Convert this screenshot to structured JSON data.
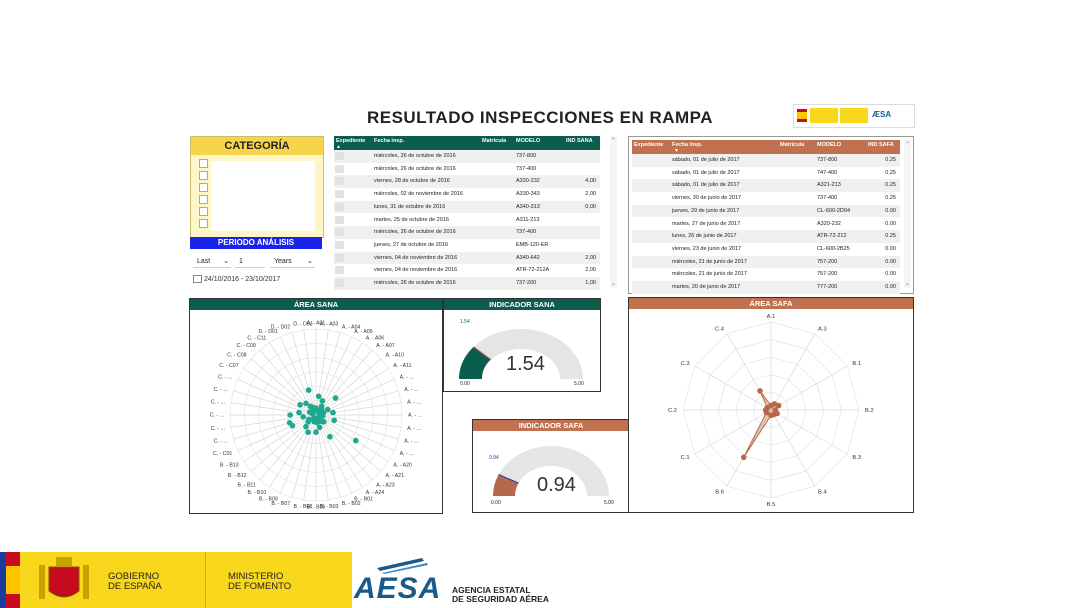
{
  "title": "RESULTADO INSPECCIONES EN RAMPA",
  "logos": {
    "gobierno": "GOBIERNO\nDE ESPAÑA",
    "ministerio": "MINISTERIO\nDE FOMENTO",
    "aesa": "AESA",
    "agencia": "AGENCIA ESTATAL\nDE SEGURIDAD AÉREA"
  },
  "category": {
    "header": "CATEGORÍA",
    "periodo_header": "PERIODO ANÁLISIS",
    "period_mode": "Last",
    "period_count": "1",
    "period_unit": "Years",
    "date_range": "24/10/2016 - 23/10/2017"
  },
  "colors": {
    "sana": "#0b5d4d",
    "safa": "#b5694a",
    "periodo": "#1a24e8",
    "categoria": "#f7d54a"
  },
  "table_sana": {
    "headers": [
      "Expediente",
      "Fecha insp.",
      "Matrícula",
      "MODELO",
      "IND SANA"
    ],
    "rows": [
      [
        "",
        "miércoles, 26 de octubre de 2016",
        "",
        "737-800",
        ""
      ],
      [
        "",
        "miércoles, 26 de octubre de 2016",
        "",
        "737-400",
        ""
      ],
      [
        "",
        "viernes, 28 de octubre de 2016",
        "",
        "A320-232",
        "4,00"
      ],
      [
        "",
        "miércoles, 02 de noviembre de 2016",
        "",
        "A330-343",
        "2,00"
      ],
      [
        "",
        "lunes, 31 de octubre de 2016",
        "",
        "A340-313",
        "0,00"
      ],
      [
        "",
        "martes, 25 de octubre de 2016",
        "",
        "A311-213",
        ""
      ],
      [
        "",
        "miércoles, 26 de octubre de 2016",
        "",
        "737-400",
        ""
      ],
      [
        "",
        "jueves, 27 de octubre de 2016",
        "",
        "EMB-120-ER",
        ""
      ],
      [
        "",
        "viernes, 04 de noviembre de 2016",
        "",
        "A340-642",
        "2,00"
      ],
      [
        "",
        "viernes, 04 de noviembre de 2016",
        "",
        "ATR-72-212A",
        "2,00"
      ],
      [
        "",
        "miércoles, 26 de octubre de 2016",
        "",
        "737-200",
        "1,00"
      ]
    ]
  },
  "table_safa": {
    "headers": [
      "Expediente",
      "Fecha insp.",
      "Matrícula",
      "MODELO",
      "IND SAFA"
    ],
    "rows": [
      [
        "",
        "sábado, 01 de julio de 2017",
        "",
        "737-800",
        "0.25"
      ],
      [
        "",
        "sábado, 01 de julio de 2017",
        "",
        "747-400",
        "0.25"
      ],
      [
        "",
        "sábado, 01 de julio de 2017",
        "",
        "A321-213",
        "0.25"
      ],
      [
        "",
        "viernes, 30 de junio de 2017",
        "",
        "737-400",
        "0.25"
      ],
      [
        "",
        "jueves, 29 de junio de 2017",
        "",
        "CL-600-2D04",
        "0.00"
      ],
      [
        "",
        "martes, 27 de junio de 2017",
        "",
        "A320-232",
        "0.00"
      ],
      [
        "",
        "lunes, 26 de junio de 2017",
        "",
        "ATR-72-212",
        "0.25"
      ],
      [
        "",
        "viernes, 23 de junio de 2017",
        "",
        "CL-600-2B25",
        "0.00"
      ],
      [
        "",
        "miércoles, 21 de junio de 2017",
        "",
        "757-200",
        "0.00"
      ],
      [
        "",
        "miércoles, 21 de junio de 2017",
        "",
        "757-200",
        "0.00"
      ],
      [
        "",
        "martes, 20 de junio de 2017",
        "",
        "777-200",
        "0.00"
      ]
    ]
  },
  "area_sana": {
    "title": "ÁREA SANA",
    "labels": [
      "A. - A01",
      "A. - A03",
      "A. - A04",
      "A. - A05",
      "A. - A06",
      "A. - A07",
      "A. - A10",
      "A. - A11",
      "A. - ...",
      "A. - ...",
      "A. - ...",
      "A. - ...",
      "A. - ...",
      "A. - ...",
      "A. - ...",
      "A. - A20",
      "A. - A21",
      "A. - A23",
      "A. - A24",
      "B. - B01",
      "B. - B02",
      "B. - B03",
      "B. - B05",
      "B. - B08",
      "B. - B07",
      "B. - B09",
      "B. - B10",
      "B. - B11",
      "B. - B12",
      "B. - B13",
      "C. - C01",
      "C. - ...",
      "C. - ...",
      "C. - ...",
      "C. - ...",
      "C. - ...",
      "C. - ...",
      "C. - C07",
      "C. - C08",
      "C. - C09",
      "C. - C11",
      "D. - D01",
      "D. - D02",
      "D. - D03"
    ]
  },
  "indicador_sana": {
    "title": "INDICADOR SANA",
    "value": "1.54",
    "min": "0.00",
    "max": "5.00",
    "target": "1.54"
  },
  "indicador_safa": {
    "title": "INDICADOR SAFA",
    "value": "0.94",
    "min": "0.00",
    "max": "5.00",
    "target": "0.94"
  },
  "area_safa": {
    "title": "ÁREA SAFA",
    "labels": [
      "A.1",
      "A.3",
      "B.1",
      "B.2",
      "B.3",
      "B.4",
      "B.5",
      "B.6",
      "C.1",
      "C.2",
      "C.3",
      "C.4"
    ]
  }
}
